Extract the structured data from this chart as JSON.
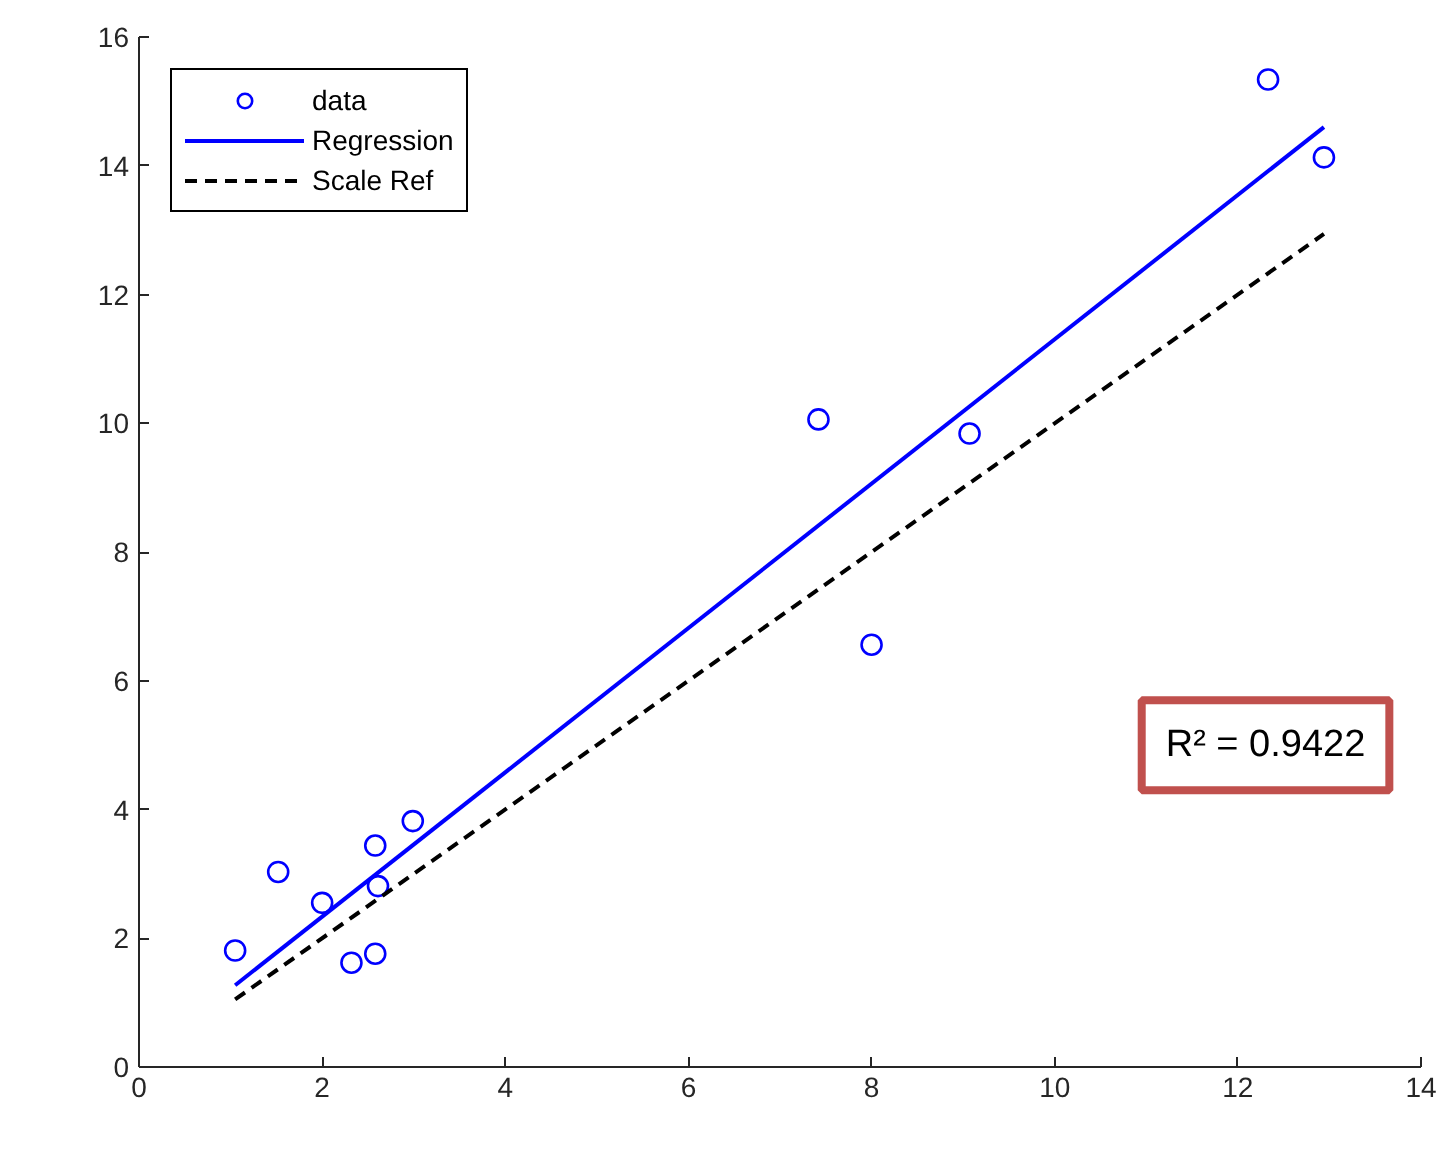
{
  "chart_data": {
    "type": "scatter",
    "xlim": [
      0,
      14
    ],
    "ylim": [
      0,
      16
    ],
    "xticks": [
      0,
      2,
      4,
      6,
      8,
      10,
      12,
      14
    ],
    "yticks": [
      0,
      2,
      4,
      6,
      8,
      10,
      12,
      14,
      16
    ],
    "legend": "top left",
    "series": [
      {
        "name": "data",
        "color": "#0000ff",
        "marker": "circle",
        "x": [
          1.05,
          1.52,
          2.0,
          2.32,
          2.58,
          2.58,
          2.61,
          2.99,
          7.42,
          8.0,
          9.07,
          12.33,
          12.94
        ],
        "values": [
          1.81,
          3.03,
          2.55,
          1.62,
          1.76,
          3.44,
          2.81,
          3.82,
          10.06,
          6.56,
          9.84,
          15.34,
          14.13
        ]
      },
      {
        "name": "Regression",
        "type": "line",
        "color": "#0000ff",
        "marker": "none",
        "line_style": "solid",
        "x": [
          1.05,
          12.94
        ],
        "values": [
          1.27,
          14.6
        ]
      },
      {
        "name": "Scale Ref",
        "type": "line",
        "color": "#000000",
        "marker": "none",
        "line_style": "dashed",
        "x": [
          1.05,
          12.94
        ],
        "values": [
          1.05,
          12.94
        ]
      }
    ],
    "annotations": [
      "R² = 0.9422"
    ]
  }
}
